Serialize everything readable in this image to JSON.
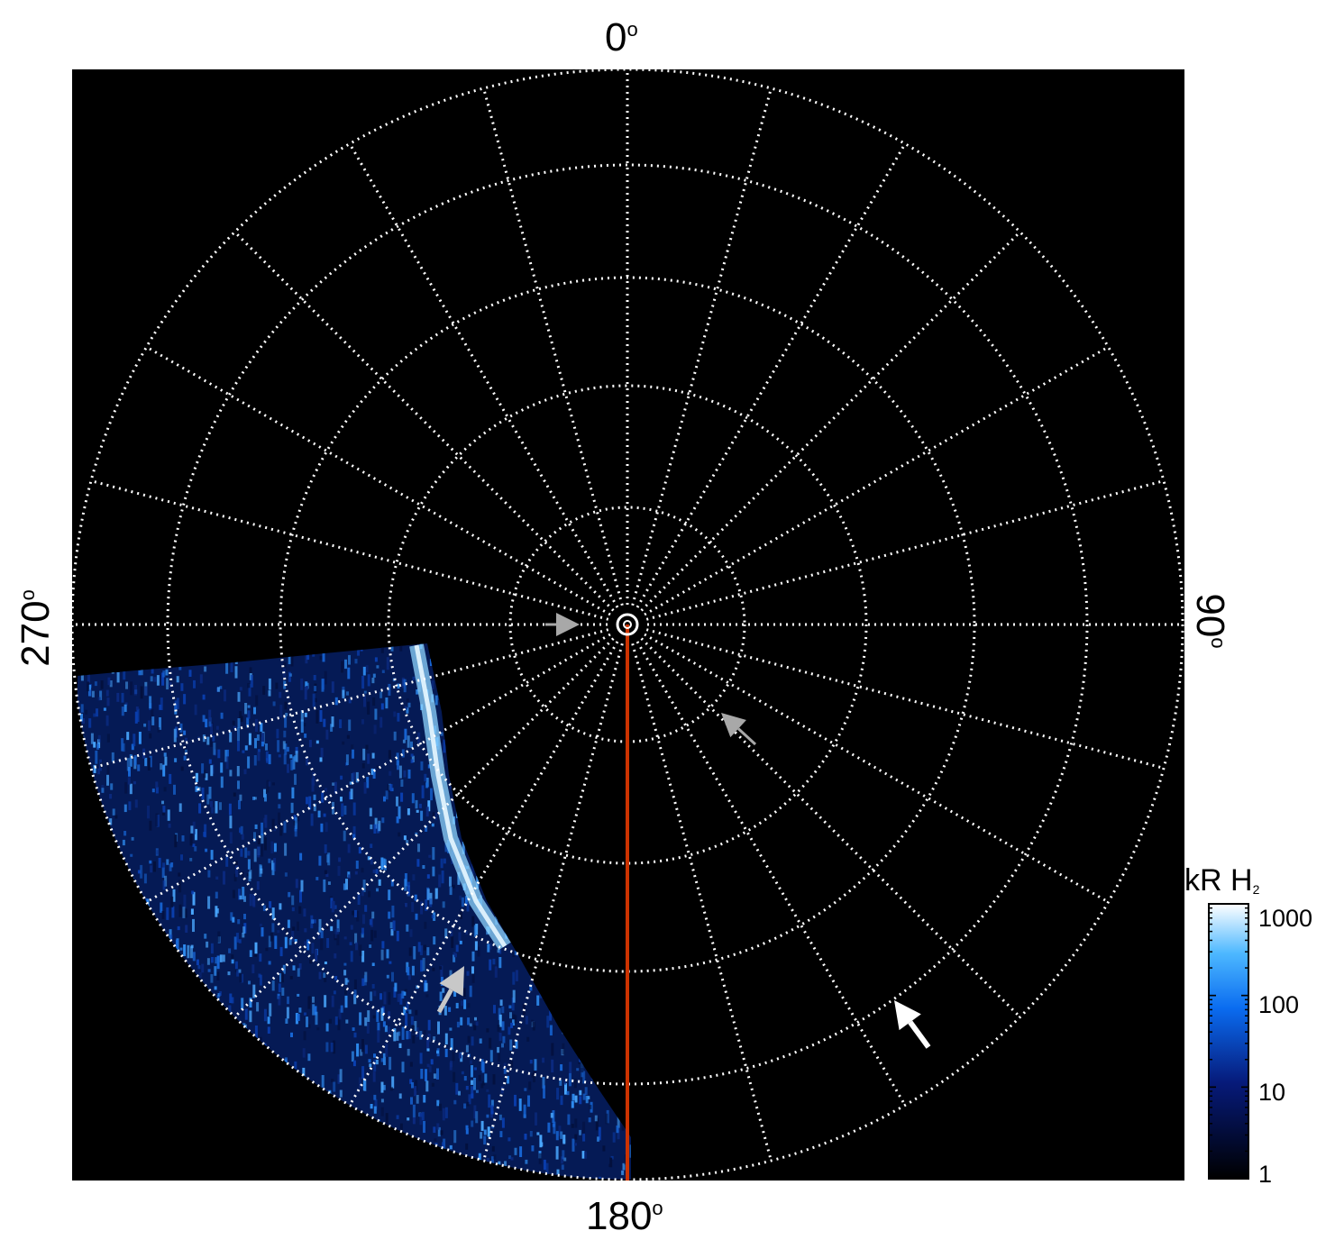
{
  "compass_labels": {
    "top": "0",
    "right": "90",
    "bottom": "180",
    "left": "270",
    "degree_symbol": "o"
  },
  "colorbar": {
    "title": "kR H",
    "title_subscript": "2",
    "scale": "log",
    "ticks": [
      "1000",
      "100",
      "10",
      "1"
    ],
    "colors": [
      "#ffffff",
      "#4db8ff",
      "#0a6cf0",
      "#061a7a",
      "#000000"
    ]
  },
  "colors": {
    "background": "#000000",
    "grid": "#ffffff",
    "meridian_line": "#cc3300",
    "arrow_gray": "#a8a8a8",
    "arrow_white": "#ffffff"
  },
  "grid": {
    "style": "dotted",
    "circle_count": 6,
    "meridian_step_deg": 15
  },
  "annotations": {
    "arrows": [
      {
        "name": "gray-arrow-center",
        "color": "gray"
      },
      {
        "name": "gray-arrow-right",
        "color": "gray"
      },
      {
        "name": "gray-arrow-lower-left",
        "color": "light-gray"
      },
      {
        "name": "white-arrow-lower-right",
        "color": "white"
      }
    ]
  }
}
